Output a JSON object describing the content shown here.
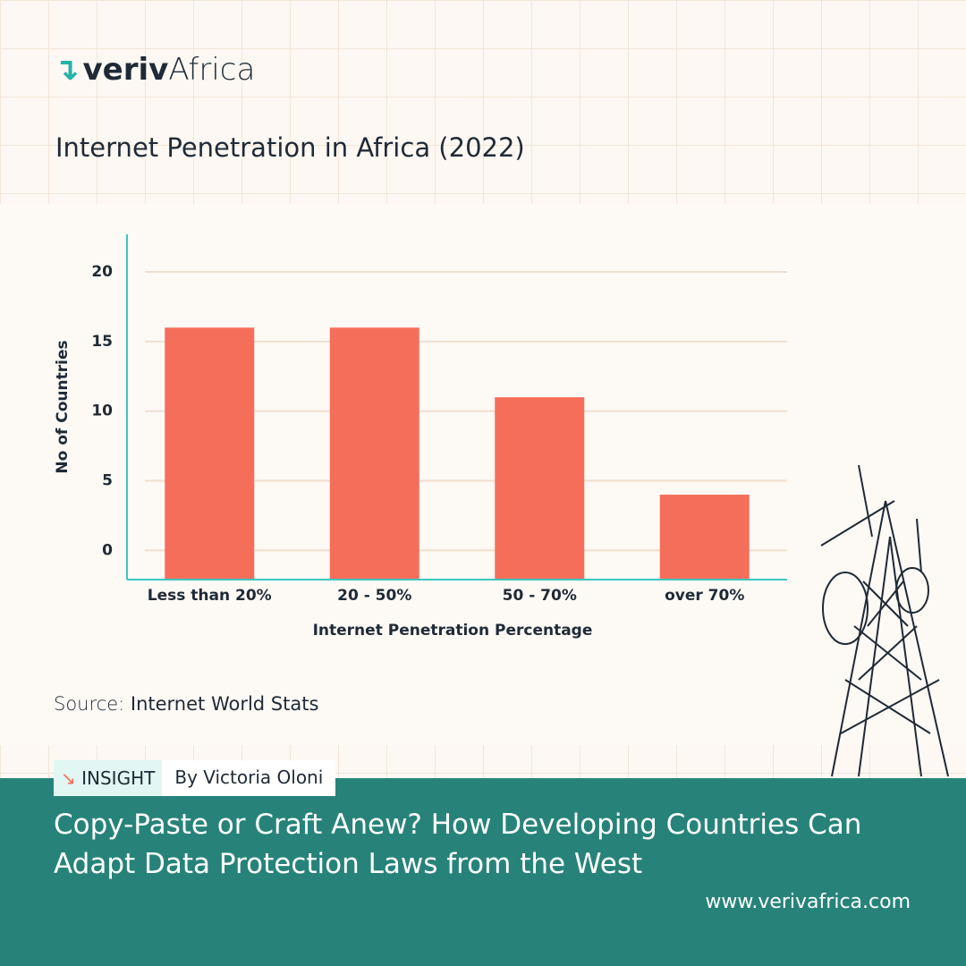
{
  "brand": {
    "name_part1": "veriv",
    "name_part2": "Africa"
  },
  "chart_data": {
    "type": "bar",
    "title": "Internet Penetration in Africa (2022)",
    "categories": [
      "Less than 20%",
      "20 - 50%",
      "50 - 70%",
      "over 70%"
    ],
    "values": [
      16,
      16,
      11,
      4
    ],
    "color": "#f56e5a",
    "x_label": "Internet Penetration Percentage",
    "y_label": "No of Countries",
    "ylim": [
      -2.1,
      22.7
    ],
    "yticks": [
      0,
      5,
      10,
      15,
      20
    ],
    "grid": true
  },
  "source": {
    "label": "Source:",
    "text": "Internet World Stats"
  },
  "tag": {
    "label": "INSIGHT",
    "author": "By Victoria Oloni"
  },
  "headline": "Copy-Paste or Craft Anew? How Developing Countries Can Adapt Data Protection Laws from the West",
  "url": "www.verivafrica.com"
}
